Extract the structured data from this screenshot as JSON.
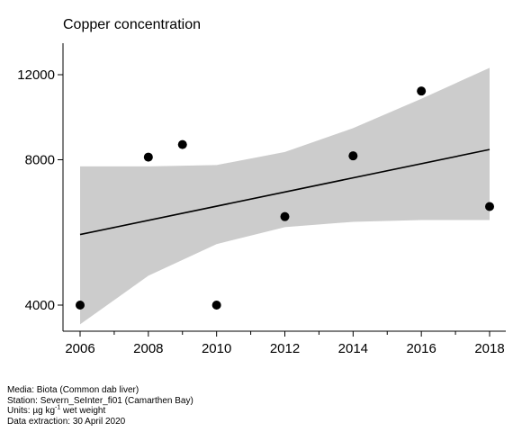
{
  "chart_data": {
    "type": "scatter",
    "title": "Copper concentration",
    "xlabel": "",
    "ylabel": "",
    "x": [
      2006,
      2008,
      2009,
      2010,
      2012,
      2014,
      2016,
      2018
    ],
    "y": [
      4000,
      8100,
      8600,
      4000,
      6100,
      8150,
      11100,
      6400
    ],
    "xlim": [
      2005.5,
      2018.5
    ],
    "ylim": [
      3500,
      12800
    ],
    "yscale": "log",
    "x_ticks": [
      2006,
      2008,
      2010,
      2012,
      2014,
      2016,
      2018
    ],
    "x_ticks_minor": [
      2007,
      2009,
      2011,
      2013,
      2015,
      2017
    ],
    "y_ticks": [
      4000,
      8000,
      12000
    ],
    "trend": {
      "x": [
        2006,
        2018
      ],
      "y": [
        5600,
        8400
      ]
    },
    "band": {
      "x": [
        2006,
        2008,
        2010,
        2012,
        2014,
        2016,
        2018
      ],
      "upper": [
        7750,
        7750,
        7800,
        8300,
        9300,
        10700,
        12400
      ],
      "lower": [
        3650,
        4600,
        5350,
        5800,
        5950,
        6000,
        6000
      ]
    },
    "grid": false,
    "legend": "none"
  },
  "colors": {
    "band": "#cccccc",
    "line": "#000000",
    "marker": "#000000",
    "axis": "#000000"
  },
  "footer": {
    "media": "Media: Biota (Common dab liver)",
    "station": "Station: Severn_SeInter_fi01 (Camarthen Bay)",
    "units_prefix": "Units:  µg kg",
    "units_exp": "-1",
    "units_suffix": " wet weight",
    "extraction": "Data extraction: 30 April 2020"
  }
}
